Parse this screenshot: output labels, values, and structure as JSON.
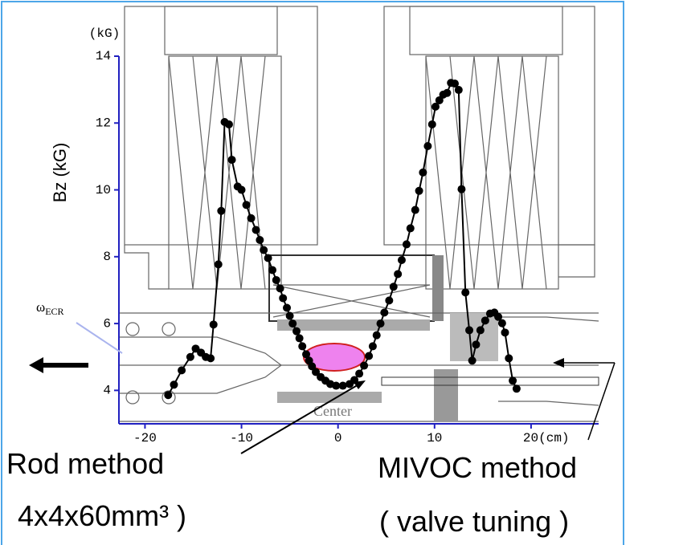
{
  "chart_data": {
    "type": "line",
    "y_unit": "(kG)",
    "ylabel": "Bz (kG)",
    "xlim": [
      -22.7,
      27
    ],
    "ylim": [
      3,
      14
    ],
    "xticks": [
      -20,
      -10,
      0,
      10,
      {
        "value": 20,
        "label": "20(cm)"
      }
    ],
    "yticks": [
      4,
      6,
      8,
      10,
      12,
      14
    ],
    "axis_color": "#2020c0",
    "series": [
      {
        "color": "#000000",
        "x": [
          -17.6,
          -17,
          -16.2,
          -15.3,
          -14.75,
          -14.2,
          -13.7,
          -13.2,
          -12.9,
          -12.4,
          -12.1,
          -11.75,
          -11.3,
          -11,
          -10.4,
          -10,
          -9.5,
          -9,
          -8.5,
          -8.1,
          -7.7,
          -7.25,
          -6.8,
          -6.4,
          -6,
          -5.7,
          -5.3,
          -5,
          -4.7,
          -4.3,
          -4,
          -3.7,
          -3.3,
          -3,
          -2.7,
          -2.3,
          -1.8,
          -1.3,
          -0.8,
          -0.2,
          0.5,
          1.2,
          1.7,
          2.2,
          2.7,
          3.2,
          3.6,
          4,
          4.4,
          4.8,
          5.3,
          5.75,
          6.2,
          6.6,
          7.1,
          7.5,
          8,
          8.4,
          8.8,
          9.3,
          9.75,
          10.1,
          10.5,
          10.9,
          11.3,
          11.7,
          12.1,
          12.5,
          12.8,
          13.2,
          13.6,
          13.9,
          14.3,
          14.75,
          15.25,
          15.75,
          16.2,
          16.6,
          17,
          17.3,
          17.7,
          18.1,
          18.5
        ],
        "values": [
          3.86,
          4.17,
          4.6,
          5,
          5.25,
          5.13,
          5,
          4.96,
          5.97,
          7.77,
          9.37,
          12.03,
          11.96,
          10.9,
          10.1,
          10,
          9.55,
          9.15,
          8.8,
          8.5,
          8.2,
          7.96,
          7.6,
          7.3,
          7.05,
          6.76,
          6.47,
          6.23,
          6,
          5.77,
          5.56,
          5.32,
          5.08,
          4.89,
          4.72,
          4.55,
          4.4,
          4.29,
          4.19,
          4.14,
          4.14,
          4.19,
          4.31,
          4.5,
          4.74,
          5.03,
          5.32,
          5.65,
          6,
          6.33,
          6.69,
          7.1,
          7.48,
          7.9,
          8.37,
          8.85,
          9.4,
          9.97,
          10.52,
          11.31,
          11.96,
          12.49,
          12.68,
          12.85,
          12.9,
          13.2,
          13.18,
          12.99,
          10.02,
          6.93,
          5.8,
          4.89,
          5.37,
          5.8,
          6.09,
          6.3,
          6.33,
          6.2,
          6.01,
          5.73,
          4.96,
          4.29,
          4.05
        ]
      }
    ]
  },
  "annotations": {
    "omega": {
      "symbol": "ω",
      "subscript": "ECR"
    },
    "center": "Center",
    "rod_method": "Rod method",
    "rod_size": "4x4x60mm³ )",
    "mivoc_method": "MIVOC method",
    "mivoc_note": "( valve tuning )"
  }
}
